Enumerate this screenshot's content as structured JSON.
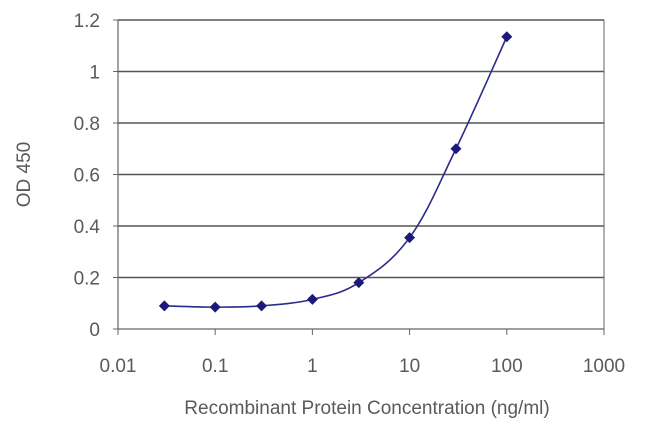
{
  "chart_data": {
    "type": "scatter",
    "title": "",
    "xlabel": "Recombinant Protein Concentration (ng/ml)",
    "ylabel": "OD 450",
    "xscale": "log",
    "xlim": [
      0.01,
      1000
    ],
    "ylim": [
      0,
      1.2
    ],
    "x_ticks": [
      "0.01",
      "0.1",
      "1",
      "10",
      "100",
      "1000"
    ],
    "y_ticks": [
      "0",
      "0.2",
      "0.4",
      "0.6",
      "0.8",
      "1",
      "1.2"
    ],
    "grid": "horizontal",
    "legend": "none",
    "colors": {
      "series": "#2b2b8c",
      "marker": "#1a1a7a",
      "grid": "#555555",
      "axis": "#666666",
      "text": "#5a5a5a"
    },
    "series": [
      {
        "x": [
          0.03,
          0.1,
          0.3,
          1,
          3,
          10,
          30,
          100
        ],
        "y": [
          0.09,
          0.085,
          0.09,
          0.115,
          0.18,
          0.355,
          0.7,
          1.135
        ],
        "marker": "diamond",
        "fit_line": "smooth"
      }
    ]
  }
}
